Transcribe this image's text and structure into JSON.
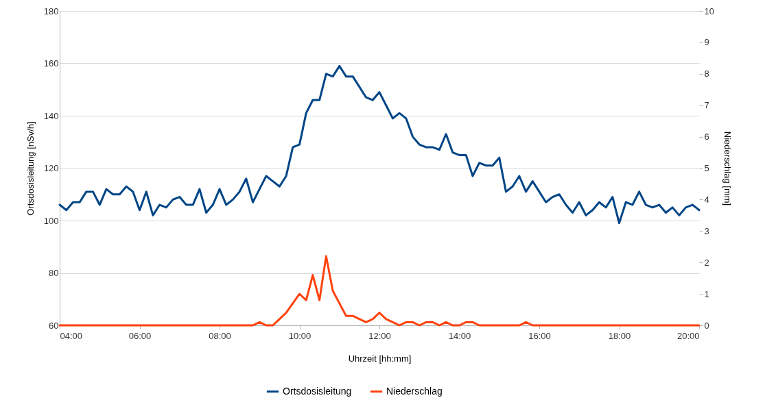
{
  "chart_data": {
    "type": "line",
    "xlabel": "Uhrzeit [hh:mm]",
    "ylabel": "Ortsdosisleitung [nSv/h]",
    "y2label": "Niederschlag [mm]",
    "x": [
      4,
      4.1667,
      4.3333,
      4.5,
      4.6667,
      4.8333,
      5,
      5.1667,
      5.3333,
      5.5,
      5.6667,
      5.8333,
      6,
      6.1667,
      6.3333,
      6.5,
      6.6667,
      6.8333,
      7,
      7.1667,
      7.3333,
      7.5,
      7.6667,
      7.8333,
      8,
      8.1667,
      8.3333,
      8.5,
      8.6667,
      8.8333,
      9,
      9.1667,
      9.3333,
      9.5,
      9.6667,
      9.8333,
      10,
      10.1667,
      10.3333,
      10.5,
      10.6667,
      10.8333,
      11,
      11.1667,
      11.3333,
      11.5,
      11.6667,
      11.8333,
      12,
      12.1667,
      12.3333,
      12.5,
      12.6667,
      12.8333,
      13,
      13.1667,
      13.3333,
      13.5,
      13.6667,
      13.8333,
      14,
      14.1667,
      14.3333,
      14.5,
      14.6667,
      14.8333,
      15,
      15.1667,
      15.3333,
      15.5,
      15.6667,
      15.8333,
      16,
      16.1667,
      16.3333,
      16.5,
      16.6667,
      16.8333,
      17,
      17.1667,
      17.3333,
      17.5,
      17.6667,
      17.8333,
      18,
      18.1667,
      18.3333,
      18.5,
      18.6667,
      18.8333,
      19,
      19.1667,
      19.3333,
      19.5,
      19.6667,
      19.8333,
      20
    ],
    "series": [
      {
        "name": "Ortsdosisleitung",
        "color": "#004586",
        "values": [
          106,
          104,
          107,
          107,
          111,
          111,
          106,
          112,
          110,
          110,
          113,
          111,
          104,
          111,
          102,
          106,
          105,
          108,
          109,
          106,
          106,
          112,
          103,
          106,
          112,
          106,
          108,
          111,
          116,
          107,
          112,
          117,
          115,
          113,
          117,
          128,
          129,
          141,
          146,
          146,
          156,
          155,
          159,
          155,
          155,
          151,
          147,
          146,
          149,
          144,
          139,
          141,
          139,
          132,
          129,
          128,
          128,
          127,
          133,
          126,
          125,
          125,
          117,
          122,
          121,
          121,
          124,
          111,
          113,
          117,
          111,
          115,
          111,
          107,
          109,
          110,
          106,
          103,
          107,
          102,
          104,
          107,
          105,
          109,
          99,
          107,
          106,
          111,
          106,
          105,
          106,
          103,
          105,
          102,
          105,
          106,
          104
        ]
      },
      {
        "name": "Niederschlag",
        "color": "#ff420e",
        "axis": "y2",
        "values": [
          0,
          0,
          0,
          0,
          0,
          0,
          0,
          0,
          0,
          0,
          0,
          0,
          0,
          0,
          0,
          0,
          0,
          0,
          0,
          0,
          0,
          0,
          0,
          0,
          0,
          0,
          0,
          0,
          0,
          0,
          0.1,
          0,
          0,
          0.2,
          0.4,
          0.7,
          1.0,
          0.8,
          1.6,
          0.8,
          2.2,
          1.1,
          0.7,
          0.3,
          0.3,
          0.2,
          0.1,
          0.2,
          0.4,
          0.2,
          0.1,
          0,
          0.1,
          0.1,
          0,
          0.1,
          0.1,
          0,
          0.1,
          0,
          0,
          0.1,
          0.1,
          0,
          0,
          0,
          0,
          0,
          0,
          0,
          0.1,
          0,
          0,
          0,
          0,
          0,
          0,
          0,
          0,
          0,
          0,
          0,
          0,
          0,
          0,
          0,
          0,
          0,
          0,
          0,
          0,
          0,
          0,
          0,
          0,
          0,
          0
        ]
      }
    ],
    "xlim": [
      4,
      20
    ],
    "xticks": [
      {
        "value": 4,
        "label": "04:00"
      },
      {
        "value": 6,
        "label": "06:00"
      },
      {
        "value": 8,
        "label": "08:00"
      },
      {
        "value": 10,
        "label": "10:00"
      },
      {
        "value": 12,
        "label": "12:00"
      },
      {
        "value": 14,
        "label": "14:00"
      },
      {
        "value": 16,
        "label": "16:00"
      },
      {
        "value": 18,
        "label": "18:00"
      },
      {
        "value": 20,
        "label": "20:00"
      }
    ],
    "ylim": [
      60,
      180
    ],
    "yticks": [
      60,
      80,
      100,
      120,
      140,
      160,
      180
    ],
    "y2lim": [
      0,
      10
    ],
    "y2ticks": [
      0,
      1,
      2,
      3,
      4,
      5,
      6,
      7,
      8,
      9,
      10
    ],
    "grid": "y",
    "legend": "bottom",
    "marker": "none",
    "line_style": "solid"
  }
}
